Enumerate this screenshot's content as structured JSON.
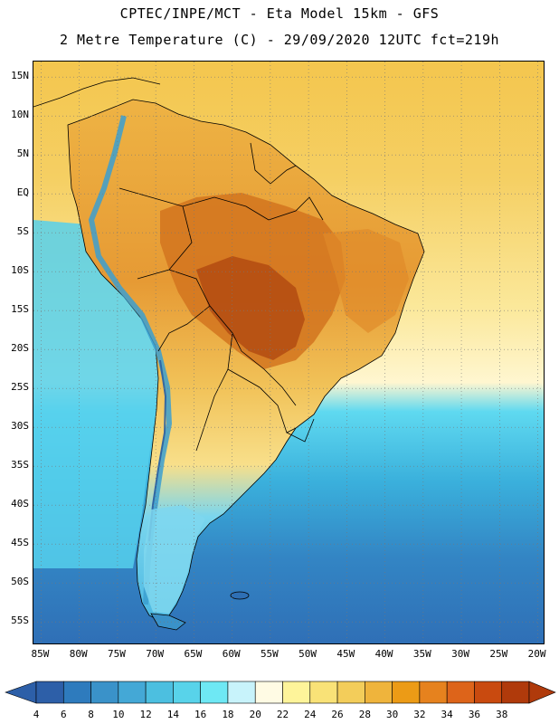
{
  "header": {
    "line1": "CPTEC/INPE/MCT -  Eta Model 15km - GFS",
    "line2": "2 Metre Temperature (C) - 29/09/2020 12UTC fct=219h"
  },
  "map": {
    "lon_range": [
      -86,
      -19
    ],
    "lat_range": [
      -58,
      17
    ],
    "lat_ticks": [
      {
        "value": 15,
        "label": "15N"
      },
      {
        "value": 10,
        "label": "10N"
      },
      {
        "value": 5,
        "label": "5N"
      },
      {
        "value": 0,
        "label": "EQ"
      },
      {
        "value": -5,
        "label": "5S"
      },
      {
        "value": -10,
        "label": "10S"
      },
      {
        "value": -15,
        "label": "15S"
      },
      {
        "value": -20,
        "label": "20S"
      },
      {
        "value": -25,
        "label": "25S"
      },
      {
        "value": -30,
        "label": "30S"
      },
      {
        "value": -35,
        "label": "35S"
      },
      {
        "value": -40,
        "label": "40S"
      },
      {
        "value": -45,
        "label": "45S"
      },
      {
        "value": -50,
        "label": "50S"
      },
      {
        "value": -55,
        "label": "55S"
      }
    ],
    "lon_ticks": [
      {
        "value": -85,
        "label": "85W"
      },
      {
        "value": -80,
        "label": "80W"
      },
      {
        "value": -75,
        "label": "75W"
      },
      {
        "value": -70,
        "label": "70W"
      },
      {
        "value": -65,
        "label": "65W"
      },
      {
        "value": -60,
        "label": "60W"
      },
      {
        "value": -55,
        "label": "55W"
      },
      {
        "value": -50,
        "label": "50W"
      },
      {
        "value": -45,
        "label": "45W"
      },
      {
        "value": -40,
        "label": "40W"
      },
      {
        "value": -35,
        "label": "35W"
      },
      {
        "value": -30,
        "label": "30W"
      },
      {
        "value": -25,
        "label": "25W"
      },
      {
        "value": -20,
        "label": "20W"
      }
    ],
    "grid": "dotted",
    "colors": {
      "ocean_north": "#f4c64e",
      "ocean_mid": "#fbe89a",
      "ocean_south_warm": "#5fd9f0",
      "ocean_south_cool": "#3ab0dc",
      "ocean_south_cold": "#2f6fb6",
      "land_warm": "#e9a437",
      "land_hot": "#cf6b1f",
      "land_hottest": "#a8420f",
      "andes_cold": "#42a9d6",
      "patagonia": "#7ad6ee",
      "border": "#000000"
    }
  },
  "colorbar": {
    "labels": [
      "4",
      "6",
      "8",
      "10",
      "12",
      "14",
      "16",
      "18",
      "20",
      "22",
      "24",
      "26",
      "28",
      "30",
      "32",
      "34",
      "36",
      "38"
    ],
    "colors": [
      "#2d5fa8",
      "#2e7bbd",
      "#3a92c9",
      "#44a8d6",
      "#4cbfe0",
      "#58d3ea",
      "#6ee8f4",
      "#c8f3fb",
      "#fffbe4",
      "#fef49a",
      "#f9e277",
      "#f3cd5a",
      "#efb43c",
      "#ec9b16",
      "#e6821e",
      "#dd641a",
      "#c94a0f",
      "#b03a0b"
    ]
  }
}
